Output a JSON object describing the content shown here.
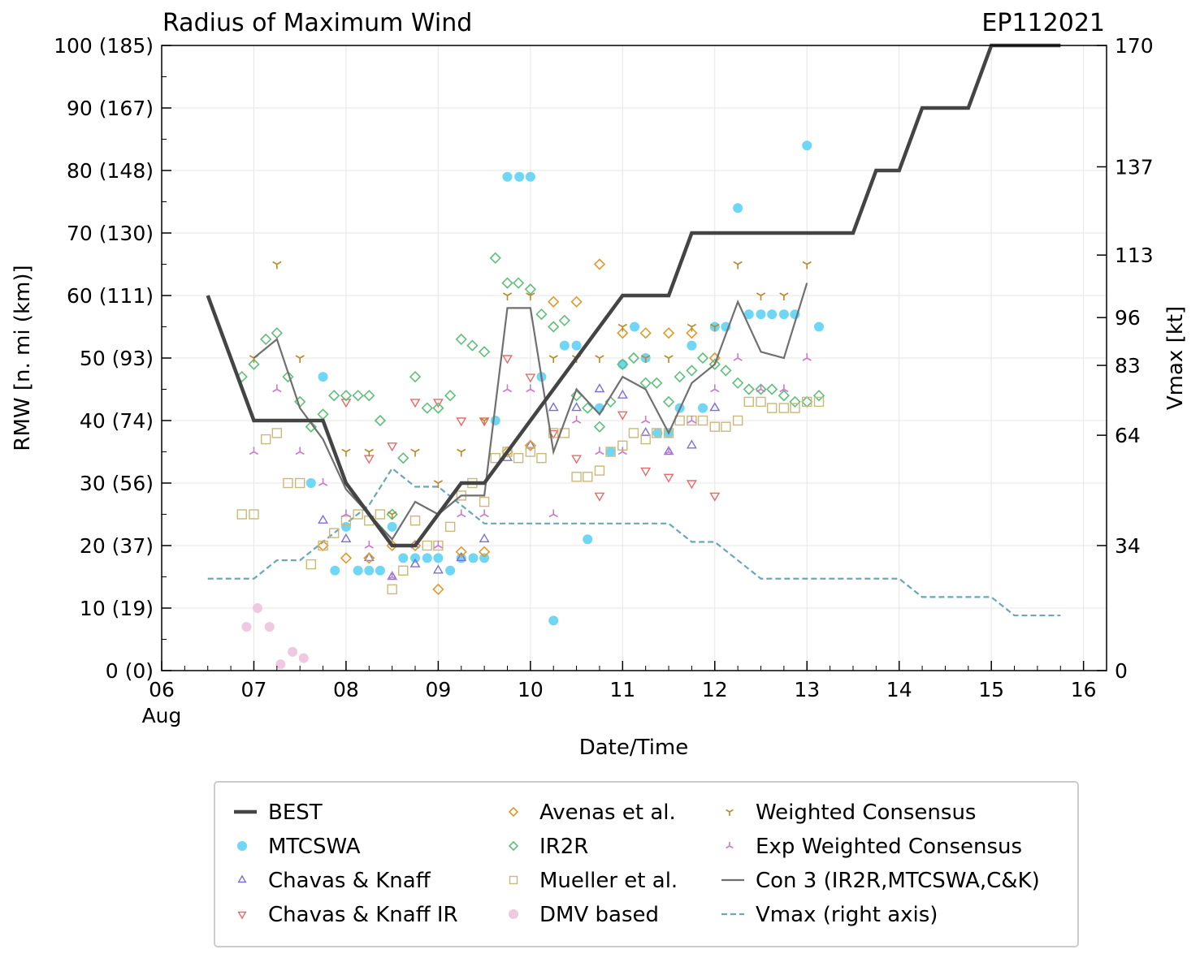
{
  "chart_data": {
    "type": "line",
    "title": "Radius of Maximum Wind",
    "storm_id": "EP112021",
    "xlabel": "Date/Time",
    "ylabel_left": "RMW [n. mi (km)]",
    "ylabel_right": "Vmax [kt]",
    "x_unit": "days since 06 Aug 00Z",
    "xlim": [
      0,
      10.25
    ],
    "ylim": [
      0,
      100
    ],
    "vmax_axis_max": 170,
    "x_ticks": [
      {
        "x": 0,
        "label": "06",
        "sub": "Aug"
      },
      {
        "x": 1,
        "label": "07"
      },
      {
        "x": 2,
        "label": "08"
      },
      {
        "x": 3,
        "label": "09"
      },
      {
        "x": 4,
        "label": "10"
      },
      {
        "x": 5,
        "label": "11"
      },
      {
        "x": 6,
        "label": "12"
      },
      {
        "x": 7,
        "label": "13"
      },
      {
        "x": 8,
        "label": "14"
      },
      {
        "x": 9,
        "label": "15"
      },
      {
        "x": 10,
        "label": "16"
      }
    ],
    "y_ticks_left": [
      {
        "v": 0,
        "label": "0 (0)"
      },
      {
        "v": 10,
        "label": "10 (19)"
      },
      {
        "v": 20,
        "label": "20 (37)"
      },
      {
        "v": 30,
        "label": "30 (56)"
      },
      {
        "v": 40,
        "label": "40 (74)"
      },
      {
        "v": 50,
        "label": "50 (93)"
      },
      {
        "v": 60,
        "label": "60 (111)"
      },
      {
        "v": 70,
        "label": "70 (130)"
      },
      {
        "v": 80,
        "label": "80 (148)"
      },
      {
        "v": 90,
        "label": "90 (167)"
      },
      {
        "v": 100,
        "label": "100 (185)"
      }
    ],
    "y_ticks_right": [
      {
        "v": 0,
        "label": "0"
      },
      {
        "v": 34,
        "label": "34"
      },
      {
        "v": 64,
        "label": "64"
      },
      {
        "v": 83,
        "label": "83"
      },
      {
        "v": 96,
        "label": "96"
      },
      {
        "v": 113,
        "label": "113"
      },
      {
        "v": 137,
        "label": "137"
      },
      {
        "v": 170,
        "label": "170"
      }
    ],
    "series": [
      {
        "name": "BEST",
        "kind": "line",
        "color": "#444444",
        "x": [
          0.5,
          1.0,
          1.75,
          2.0,
          2.5,
          2.75,
          3.25,
          3.5,
          5.0,
          5.5,
          5.75,
          7.5,
          7.75,
          8.0,
          8.25,
          8.75,
          9.0,
          9.75
        ],
        "y": [
          60,
          40,
          40,
          30,
          20,
          20,
          30,
          30,
          60,
          60,
          70,
          70,
          80,
          80,
          90,
          90,
          100,
          100
        ]
      },
      {
        "name": "MTCSWA",
        "kind": "marker",
        "marker": "circle",
        "color": "#6fd6f5",
        "x": [
          1.75,
          1.62,
          2.0,
          1.88,
          2.13,
          2.25,
          2.37,
          2.5,
          2.62,
          2.75,
          2.88,
          3.0,
          3.13,
          3.25,
          3.38,
          3.5,
          3.62,
          3.75,
          3.88,
          4.0,
          4.12,
          4.25,
          4.37,
          4.5,
          4.62,
          4.75,
          4.87,
          5.0,
          5.13,
          5.25,
          5.38,
          5.5,
          5.62,
          5.75,
          5.87,
          6.0,
          6.12,
          6.25,
          6.37,
          6.5,
          6.62,
          6.75,
          6.87,
          7.0,
          7.13
        ],
        "y": [
          47,
          30,
          23,
          16,
          16,
          16,
          16,
          23,
          18,
          18,
          18,
          18,
          16,
          18,
          18,
          18,
          40,
          79,
          79,
          79,
          47,
          8,
          52,
          52,
          21,
          42,
          35,
          49,
          55,
          50,
          38,
          38,
          42,
          52,
          42,
          55,
          55,
          74,
          57,
          57,
          57,
          57,
          57,
          84,
          55
        ]
      },
      {
        "name": "Chavas & Knaff",
        "kind": "marker",
        "marker": "tri_up",
        "color": "#7b6fd8",
        "x": [
          1.75,
          2.0,
          2.25,
          2.5,
          2.75,
          3.0,
          3.25,
          3.5,
          3.75,
          4.0,
          4.25,
          4.5,
          4.75,
          5.0,
          5.25,
          5.5,
          5.75,
          6.0
        ],
        "y": [
          24,
          21,
          18,
          15,
          17,
          16,
          18,
          21,
          34,
          36,
          42,
          42,
          45,
          44,
          38,
          35,
          36,
          42
        ]
      },
      {
        "name": "Chavas & Knaff IR",
        "kind": "marker",
        "marker": "tri_down",
        "color": "#e66a6a",
        "x": [
          2.0,
          2.25,
          2.5,
          2.75,
          3.0,
          3.25,
          3.5,
          3.75,
          4.0,
          4.25,
          4.5,
          4.75,
          5.0,
          5.25,
          5.5,
          5.75,
          6.0
        ],
        "y": [
          43,
          34,
          36,
          43,
          43,
          40,
          40,
          50,
          47,
          38,
          34,
          28,
          41,
          32,
          31,
          30,
          28
        ]
      },
      {
        "name": "Avenas et al.",
        "kind": "marker",
        "marker": "diamond",
        "color": "#e09a2a",
        "x": [
          1.75,
          2.0,
          2.25,
          2.5,
          2.75,
          3.0,
          3.25,
          3.5,
          3.75,
          4.0,
          4.25,
          4.5,
          4.75,
          5.0,
          5.25,
          5.5,
          5.75,
          6.0
        ],
        "y": [
          20,
          18,
          18,
          20,
          20,
          13,
          19,
          19,
          35,
          36,
          59,
          59,
          65,
          54,
          54,
          54,
          54,
          50
        ]
      },
      {
        "name": "IR2R",
        "kind": "marker",
        "marker": "diamond",
        "color": "#5fbf7a",
        "x": [
          0.87,
          1.0,
          1.13,
          1.25,
          1.37,
          1.5,
          1.62,
          1.75,
          1.87,
          2.0,
          2.13,
          2.25,
          2.37,
          2.5,
          2.62,
          2.75,
          2.88,
          3.0,
          3.13,
          3.25,
          3.37,
          3.5,
          3.62,
          3.75,
          3.87,
          4.0,
          4.12,
          4.25,
          4.37,
          4.5,
          4.62,
          4.75,
          4.87,
          5.0,
          5.12,
          5.25,
          5.37,
          5.5,
          5.62,
          5.75,
          5.87,
          6.0,
          6.12,
          6.25,
          6.37,
          6.5,
          6.62,
          6.75,
          6.87,
          7.0,
          7.13
        ],
        "y": [
          47,
          49,
          53,
          54,
          47,
          43,
          39,
          41,
          44,
          44,
          44,
          44,
          40,
          25,
          34,
          47,
          42,
          42,
          44,
          53,
          52,
          51,
          66,
          62,
          62,
          61,
          57,
          55,
          56,
          44,
          42,
          39,
          43,
          49,
          50,
          46,
          46,
          43,
          47,
          48,
          50,
          49,
          48,
          46,
          45,
          45,
          45,
          44,
          43,
          43,
          44
        ]
      },
      {
        "name": "Mueller et al.",
        "kind": "marker",
        "marker": "square",
        "color": "#c9b97a",
        "x": [
          0.87,
          1.0,
          1.13,
          1.25,
          1.37,
          1.5,
          1.62,
          1.75,
          1.87,
          2.0,
          2.13,
          2.25,
          2.37,
          2.5,
          2.62,
          2.75,
          2.88,
          3.0,
          3.13,
          3.25,
          3.37,
          3.5,
          3.62,
          3.75,
          3.87,
          4.0,
          4.12,
          4.25,
          4.37,
          4.5,
          4.62,
          4.75,
          4.87,
          5.0,
          5.12,
          5.25,
          5.37,
          5.5,
          5.62,
          5.75,
          5.87,
          6.0,
          6.12,
          6.25,
          6.37,
          6.5,
          6.62,
          6.75,
          6.87,
          7.0,
          7.13
        ],
        "y": [
          25,
          25,
          37,
          38,
          30,
          30,
          17,
          20,
          22,
          24,
          25,
          24,
          25,
          13,
          16,
          24,
          20,
          20,
          23,
          28,
          30,
          27,
          34,
          35,
          34,
          35,
          34,
          38,
          38,
          31,
          31,
          32,
          35,
          36,
          38,
          37,
          38,
          38,
          40,
          40,
          40,
          39,
          39,
          40,
          43,
          43,
          42,
          42,
          42,
          43,
          43
        ]
      },
      {
        "name": "DMV based",
        "kind": "marker",
        "marker": "circle",
        "color": "#f0c8e0",
        "x": [
          0.92,
          1.04,
          1.17,
          1.29,
          1.42,
          1.54
        ],
        "y": [
          7,
          10,
          7,
          1,
          3,
          2
        ]
      },
      {
        "name": "Weighted Consensus",
        "kind": "marker",
        "marker": "tri_down_line",
        "color": "#b88a2a",
        "x": [
          1.0,
          1.25,
          1.5,
          2.0,
          2.25,
          2.5,
          2.75,
          3.0,
          3.25,
          3.5,
          3.75,
          4.0,
          4.25,
          4.5,
          4.75,
          5.0,
          5.25,
          5.5,
          5.75,
          6.0,
          6.25,
          6.5,
          6.75,
          7.0
        ],
        "y": [
          50,
          65,
          50,
          35,
          35,
          25,
          35,
          30,
          35,
          40,
          60,
          60,
          50,
          50,
          50,
          55,
          50,
          50,
          55,
          55,
          65,
          60,
          60,
          65
        ]
      },
      {
        "name": "Exp Weighted Consensus",
        "kind": "marker",
        "marker": "tri_up_line",
        "color": "#cc7acc",
        "x": [
          1.0,
          1.25,
          1.5,
          1.75,
          2.0,
          2.25,
          2.5,
          2.75,
          3.0,
          3.25,
          3.5,
          3.75,
          4.0,
          4.25,
          4.5,
          4.75,
          5.0,
          5.25,
          5.5,
          5.75,
          6.0,
          6.25,
          6.5,
          6.75,
          7.0
        ],
        "y": [
          35,
          45,
          35,
          30,
          25,
          20,
          15,
          20,
          20,
          25,
          25,
          45,
          45,
          25,
          40,
          35,
          35,
          40,
          35,
          40,
          45,
          50,
          45,
          45,
          50
        ]
      },
      {
        "name": "Con 3 (IR2R,MTCSWA,C&K)",
        "kind": "line",
        "color": "#707070",
        "x": [
          1.0,
          1.25,
          1.5,
          1.75,
          2.0,
          2.25,
          2.5,
          2.75,
          3.0,
          3.25,
          3.5,
          3.75,
          4.0,
          4.25,
          4.5,
          4.75,
          5.0,
          5.25,
          5.5,
          5.75,
          6.0,
          6.25,
          6.5,
          6.75,
          7.0
        ],
        "y": [
          50,
          53,
          42,
          37,
          29,
          25,
          21,
          27,
          25,
          28,
          28,
          58,
          58,
          35,
          45,
          41,
          47,
          45,
          38,
          46,
          49,
          59,
          51,
          50,
          62
        ]
      },
      {
        "name": "Vmax (right axis)",
        "kind": "line",
        "color": "#6aa8b8",
        "dashed": true,
        "axis": "right",
        "x": [
          0.5,
          1.0,
          1.25,
          1.5,
          1.75,
          2.0,
          2.25,
          2.5,
          2.75,
          3.0,
          3.5,
          3.75,
          4.0,
          5.5,
          5.75,
          6.0,
          6.5,
          8.0,
          8.25,
          9.0,
          9.25,
          9.75
        ],
        "y": [
          25,
          25,
          30,
          30,
          35,
          40,
          45,
          55,
          50,
          50,
          40,
          40,
          40,
          40,
          35,
          35,
          25,
          25,
          20,
          20,
          15,
          15
        ]
      }
    ]
  },
  "legend": {
    "columns": [
      [
        {
          "label": "BEST",
          "key": 0
        },
        {
          "label": "MTCSWA",
          "key": 1
        },
        {
          "label": "Chavas & Knaff",
          "key": 2
        },
        {
          "label": "Chavas & Knaff IR",
          "key": 3
        }
      ],
      [
        {
          "label": "Avenas et al.",
          "key": 4
        },
        {
          "label": "IR2R",
          "key": 5
        },
        {
          "label": "Mueller et al.",
          "key": 6
        },
        {
          "label": "DMV based",
          "key": 7
        }
      ],
      [
        {
          "label": "Weighted Consensus",
          "key": 8
        },
        {
          "label": "Exp Weighted Consensus",
          "key": 9
        },
        {
          "label": "Con 3 (IR2R,MTCSWA,C&K)",
          "key": 10
        },
        {
          "label": "Vmax (right axis)",
          "key": 11
        }
      ]
    ]
  }
}
